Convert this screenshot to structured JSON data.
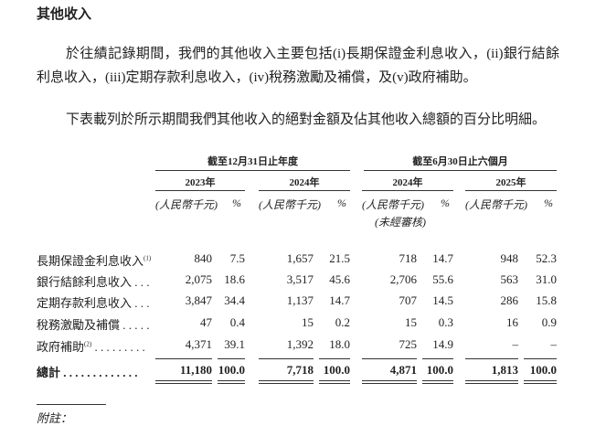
{
  "heading": "其他收入",
  "paragraphs": [
    "於往績記錄期間，我們的其他收入主要包括(i)長期保證金利息收入，(ii)銀行結餘利息收入，(iii)定期存款利息收入，(iv)稅務激勵及補償，及(v)政府補助。",
    "下表載列於所示期間我們其他收入的絕對金額及佔其他收入總額的百分比明細。"
  ],
  "table": {
    "group_headers": [
      "截至12月31日止年度",
      "截至6月30日止六個月"
    ],
    "years": [
      "2023年",
      "2024年",
      "2024年",
      "2025年"
    ],
    "units": [
      [
        "(人民幣千元)",
        "%"
      ],
      [
        "(人民幣千元)",
        "%"
      ],
      [
        "(人民幣千元)",
        "%"
      ],
      [
        "(人民幣千元)",
        "%"
      ]
    ],
    "unaudited": "(未經審核)",
    "rows": [
      {
        "label": "長期保證金利息收入",
        "note": "(1)",
        "cells": [
          "840",
          "7.5",
          "1,657",
          "21.5",
          "718",
          "14.7",
          "948",
          "52.3"
        ]
      },
      {
        "label": "銀行結餘利息收入 . . .",
        "cells": [
          "2,075",
          "18.6",
          "3,517",
          "45.6",
          "2,706",
          "55.6",
          "563",
          "31.0"
        ]
      },
      {
        "label": "定期存款利息收入 . . .",
        "cells": [
          "3,847",
          "34.4",
          "1,137",
          "14.7",
          "707",
          "14.5",
          "286",
          "15.8"
        ]
      },
      {
        "label": "稅務激勵及補償 . . . . .",
        "cells": [
          "47",
          "0.4",
          "15",
          "0.2",
          "15",
          "0.3",
          "16",
          "0.9"
        ]
      },
      {
        "label": "政府補助",
        "note": "(2)",
        "leader": ". . . . . . . . .",
        "cells": [
          "4,371",
          "39.1",
          "1,392",
          "18.0",
          "725",
          "14.9",
          "–",
          "–"
        ]
      }
    ],
    "total": {
      "label": "總計",
      "leader": ". . . . . . . . . . . . .",
      "cells": [
        "11,180",
        "100.0",
        "7,718",
        "100.0",
        "4,871",
        "100.0",
        "1,813",
        "100.0"
      ]
    }
  },
  "footnote_heading": "附註："
}
